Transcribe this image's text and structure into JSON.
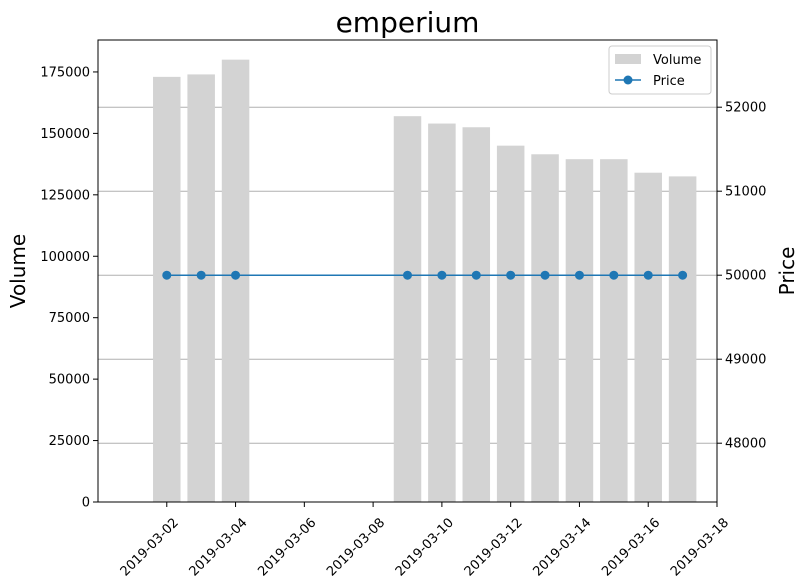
{
  "chart_data": {
    "type": "bar",
    "title": "emperium",
    "ylabel": "Volume",
    "y2label": "Price",
    "x_tick_labels": [
      "2019-03-02",
      "2019-03-04",
      "2019-03-06",
      "2019-03-08",
      "2019-03-10",
      "2019-03-12",
      "2019-03-14",
      "2019-03-16",
      "2019-03-18"
    ],
    "xlim": [
      "2019-03-00",
      "2019-03-18"
    ],
    "ylim": [
      0,
      188000
    ],
    "y2lim": [
      47300,
      52800
    ],
    "y_ticks": [
      0,
      25000,
      50000,
      75000,
      100000,
      125000,
      150000,
      175000
    ],
    "y2_ticks": [
      48000,
      49000,
      50000,
      51000,
      52000
    ],
    "grid": "horizontal (price axis)",
    "legend": {
      "position": "top-right",
      "entries": [
        "Volume",
        "Price"
      ]
    },
    "colors": {
      "volume": "#d3d3d3",
      "price": "#1f77b4"
    },
    "series": [
      {
        "name": "Volume",
        "axis": "left",
        "kind": "bar",
        "dates": [
          "2019-03-02",
          "2019-03-03",
          "2019-03-04",
          "2019-03-09",
          "2019-03-10",
          "2019-03-11",
          "2019-03-12",
          "2019-03-13",
          "2019-03-14",
          "2019-03-15",
          "2019-03-16",
          "2019-03-17"
        ],
        "values": [
          173000,
          174000,
          180000,
          157000,
          154000,
          152500,
          145000,
          141500,
          139500,
          139500,
          134000,
          132500
        ]
      },
      {
        "name": "Price",
        "axis": "right",
        "kind": "line",
        "dates": [
          "2019-03-02",
          "2019-03-03",
          "2019-03-04",
          "2019-03-09",
          "2019-03-10",
          "2019-03-11",
          "2019-03-12",
          "2019-03-13",
          "2019-03-14",
          "2019-03-15",
          "2019-03-16",
          "2019-03-17"
        ],
        "values": [
          50000,
          50000,
          50000,
          50000,
          50000,
          50000,
          50000,
          50000,
          50000,
          50000,
          50000,
          50000
        ]
      }
    ]
  }
}
